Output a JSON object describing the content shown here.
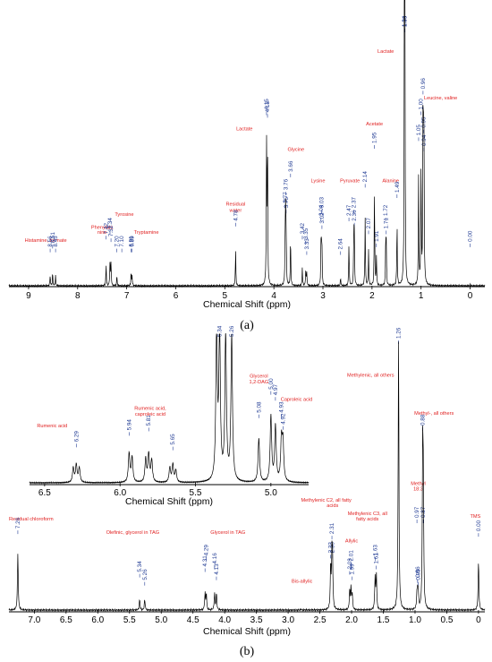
{
  "chart_data": [
    {
      "type": "line",
      "panel_label": "(a)",
      "xlabel": "Chemical Shift (ppm)",
      "xlim": [
        9.4,
        -0.3
      ],
      "x_ticks": [
        "9",
        "8",
        "7",
        "6",
        "5",
        "4",
        "3",
        "2",
        "1",
        "0"
      ],
      "peaks": [
        {
          "x": 8.56,
          "h": 0.04
        },
        {
          "x": 8.51,
          "h": 0.05
        },
        {
          "x": 8.45,
          "h": 0.04
        },
        {
          "x": 7.42,
          "h": 0.08
        },
        {
          "x": 7.34,
          "h": 0.1
        },
        {
          "x": 7.32,
          "h": 0.09
        },
        {
          "x": 7.2,
          "h": 0.04
        },
        {
          "x": 6.91,
          "h": 0.05
        },
        {
          "x": 6.89,
          "h": 0.04
        },
        {
          "x": 4.78,
          "h": 0.14
        },
        {
          "x": 4.15,
          "h": 0.58
        },
        {
          "x": 4.13,
          "h": 0.55
        },
        {
          "x": 3.77,
          "h": 0.18
        },
        {
          "x": 3.76,
          "h": 0.24
        },
        {
          "x": 3.75,
          "h": 0.17
        },
        {
          "x": 3.66,
          "h": 0.19
        },
        {
          "x": 3.42,
          "h": 0.07
        },
        {
          "x": 3.35,
          "h": 0.06
        },
        {
          "x": 3.33,
          "h": 0.05
        },
        {
          "x": 3.04,
          "h": 0.13
        },
        {
          "x": 3.03,
          "h": 0.14
        },
        {
          "x": 3.02,
          "h": 0.12
        },
        {
          "x": 2.64,
          "h": 0.03
        },
        {
          "x": 2.47,
          "h": 0.16
        },
        {
          "x": 2.37,
          "h": 0.2
        },
        {
          "x": 2.36,
          "h": 0.17
        },
        {
          "x": 2.14,
          "h": 0.27
        },
        {
          "x": 2.07,
          "h": 0.14
        },
        {
          "x": 1.95,
          "h": 0.37
        },
        {
          "x": 1.91,
          "h": 0.11
        },
        {
          "x": 1.72,
          "h": 0.16
        },
        {
          "x": 1.71,
          "h": 0.15
        },
        {
          "x": 1.49,
          "h": 0.25
        },
        {
          "x": 1.34,
          "h": 1.0
        },
        {
          "x": 1.33,
          "h": 0.97
        },
        {
          "x": 1.05,
          "h": 0.43
        },
        {
          "x": 1.0,
          "h": 0.5
        },
        {
          "x": 0.96,
          "h": 0.56
        },
        {
          "x": 0.95,
          "h": 0.47
        },
        {
          "x": 0.94,
          "h": 0.42
        },
        {
          "x": 0.0,
          "h": 0.005
        }
      ],
      "peak_labels": [
        {
          "text": "8.56",
          "x": 8.56,
          "y": 0.15
        },
        {
          "text": "8.51",
          "x": 8.51,
          "y": 0.165
        },
        {
          "text": "8.45",
          "x": 8.45,
          "y": 0.15
        },
        {
          "text": "7.42",
          "x": 7.42,
          "y": 0.2
        },
        {
          "text": "7.34",
          "x": 7.34,
          "y": 0.22
        },
        {
          "text": "7.32",
          "x": 7.32,
          "y": 0.19
        },
        {
          "text": "7.20",
          "x": 7.2,
          "y": 0.15
        },
        {
          "text": "7.10",
          "x": 7.1,
          "y": 0.15
        },
        {
          "text": "6.91",
          "x": 6.91,
          "y": 0.15
        },
        {
          "text": "6.89",
          "x": 6.89,
          "y": 0.15
        },
        {
          "text": "4.78",
          "x": 4.78,
          "y": 0.25
        },
        {
          "text": "4.15",
          "x": 4.15,
          "y": 0.68
        },
        {
          "text": "4.13",
          "x": 4.13,
          "y": 0.67
        },
        {
          "text": "3.77",
          "x": 3.77,
          "y": 0.32
        },
        {
          "text": "3.76",
          "x": 3.76,
          "y": 0.37
        },
        {
          "text": "3.75",
          "x": 3.75,
          "y": 0.3
        },
        {
          "text": "3.66",
          "x": 3.66,
          "y": 0.44
        },
        {
          "text": "3.42",
          "x": 3.42,
          "y": 0.2
        },
        {
          "text": "3.35",
          "x": 3.35,
          "y": 0.18
        },
        {
          "text": "3.33",
          "x": 3.33,
          "y": 0.14
        },
        {
          "text": "3.04",
          "x": 3.04,
          "y": 0.27
        },
        {
          "text": "3.03",
          "x": 3.03,
          "y": 0.3
        },
        {
          "text": "3.02",
          "x": 3.02,
          "y": 0.24
        },
        {
          "text": "2.64",
          "x": 2.64,
          "y": 0.14
        },
        {
          "text": "2.47",
          "x": 2.47,
          "y": 0.27
        },
        {
          "text": "2.37",
          "x": 2.37,
          "y": 0.3
        },
        {
          "text": "2.36",
          "x": 2.36,
          "y": 0.25
        },
        {
          "text": "2.14",
          "x": 2.14,
          "y": 0.4
        },
        {
          "text": "2.07",
          "x": 2.07,
          "y": 0.22
        },
        {
          "text": "1.95",
          "x": 1.95,
          "y": 0.55
        },
        {
          "text": "1.91",
          "x": 1.91,
          "y": 0.17
        },
        {
          "text": "1.72",
          "x": 1.72,
          "y": 0.27
        },
        {
          "text": "1.71",
          "x": 1.71,
          "y": 0.22
        },
        {
          "text": "1.49",
          "x": 1.49,
          "y": 0.36
        },
        {
          "text": "1.34",
          "x": 1.34,
          "y": 1.0
        },
        {
          "text": "1.33",
          "x": 1.33,
          "y": 1.0
        },
        {
          "text": "1.05",
          "x": 1.05,
          "y": 0.58
        },
        {
          "text": "1.00",
          "x": 1.0,
          "y": 0.68
        },
        {
          "text": "0.96",
          "x": 0.96,
          "y": 0.76
        },
        {
          "text": "0.95",
          "x": 0.95,
          "y": 0.61
        },
        {
          "text": "0.94",
          "x": 0.94,
          "y": 0.54
        },
        {
          "text": "0.00",
          "x": 0.0,
          "y": 0.17
        }
      ],
      "annotations": [
        {
          "text": "Histamine, formate",
          "x": 8.65,
          "y": 0.17
        },
        {
          "text": "Phenylala",
          "x": 7.5,
          "y": 0.22
        },
        {
          "text": "nine",
          "x": 7.5,
          "y": 0.2
        },
        {
          "text": "Tyrosine",
          "x": 7.05,
          "y": 0.27
        },
        {
          "text": "Tryptamine",
          "x": 6.6,
          "y": 0.2
        },
        {
          "text": "Residual",
          "x": 4.78,
          "y": 0.31
        },
        {
          "text": "water",
          "x": 4.78,
          "y": 0.285
        },
        {
          "text": "Lactate",
          "x": 4.6,
          "y": 0.6
        },
        {
          "text": "Glycine",
          "x": 3.55,
          "y": 0.52
        },
        {
          "text": "Lysine",
          "x": 3.1,
          "y": 0.4
        },
        {
          "text": "Pyruvate",
          "x": 2.45,
          "y": 0.4
        },
        {
          "text": "Acetate",
          "x": 1.95,
          "y": 0.62
        },
        {
          "text": "Alanine",
          "x": 1.62,
          "y": 0.4
        },
        {
          "text": "Lactate",
          "x": 1.72,
          "y": 0.9
        },
        {
          "text": "Leucine, valine",
          "x": 0.6,
          "y": 0.72
        }
      ]
    },
    {
      "type": "line",
      "panel_label": "(b)",
      "xlabel": "Chemical Shift (ppm)",
      "xlim": [
        7.4,
        -0.1
      ],
      "x_ticks": [
        "7.0",
        "6.5",
        "6.0",
        "5.5",
        "5.0",
        "4.5",
        "4.0",
        "3.5",
        "3.0",
        "2.5",
        "2.0",
        "1.5",
        "1.0",
        "0.5",
        "0"
      ],
      "peaks": [
        {
          "x": 7.26,
          "h": 0.21
        },
        {
          "x": 5.34,
          "h": 0.04
        },
        {
          "x": 5.26,
          "h": 0.04
        },
        {
          "x": 4.31,
          "h": 0.06
        },
        {
          "x": 4.29,
          "h": 0.06
        },
        {
          "x": 4.16,
          "h": 0.06
        },
        {
          "x": 4.13,
          "h": 0.06
        },
        {
          "x": 2.8,
          "h": 0.003
        },
        {
          "x": 2.33,
          "h": 0.16
        },
        {
          "x": 2.31,
          "h": 0.19
        },
        {
          "x": 2.3,
          "h": 0.16
        },
        {
          "x": 2.03,
          "h": 0.07
        },
        {
          "x": 2.01,
          "h": 0.08
        },
        {
          "x": 1.99,
          "h": 0.06
        },
        {
          "x": 1.63,
          "h": 0.12
        },
        {
          "x": 1.61,
          "h": 0.13
        },
        {
          "x": 1.26,
          "h": 1.0
        },
        {
          "x": 0.97,
          "h": 0.05
        },
        {
          "x": 0.96,
          "h": 0.05
        },
        {
          "x": 0.95,
          "h": 0.06
        },
        {
          "x": 0.88,
          "h": 0.55
        },
        {
          "x": 0.87,
          "h": 0.42
        },
        {
          "x": 0.0,
          "h": 0.18
        }
      ],
      "peak_labels": [
        {
          "text": "7.26",
          "x": 7.26,
          "y": 0.3
        },
        {
          "text": "5.34",
          "x": 5.34,
          "y": 0.14
        },
        {
          "text": "5.26",
          "x": 5.26,
          "y": 0.11
        },
        {
          "text": "4.31",
          "x": 4.31,
          "y": 0.16
        },
        {
          "text": "4.29",
          "x": 4.29,
          "y": 0.2
        },
        {
          "text": "4.16",
          "x": 4.16,
          "y": 0.17
        },
        {
          "text": "4.13",
          "x": 4.13,
          "y": 0.13
        },
        {
          "text": "2.33",
          "x": 2.33,
          "y": 0.21
        },
        {
          "text": "2.31",
          "x": 2.31,
          "y": 0.28
        },
        {
          "text": "2.30",
          "x": 2.3,
          "y": 0.21
        },
        {
          "text": "2.03",
          "x": 2.03,
          "y": 0.15
        },
        {
          "text": "2.01",
          "x": 2.01,
          "y": 0.18
        },
        {
          "text": "1.99",
          "x": 1.99,
          "y": 0.13
        },
        {
          "text": "1.63",
          "x": 1.63,
          "y": 0.2
        },
        {
          "text": "1.61",
          "x": 1.61,
          "y": 0.17
        },
        {
          "text": "1.26",
          "x": 1.26,
          "y": 1.0
        },
        {
          "text": "0.97",
          "x": 0.97,
          "y": 0.34
        },
        {
          "text": "0.96",
          "x": 0.96,
          "y": 0.12
        },
        {
          "text": "0.95",
          "x": 0.95,
          "y": 0.11
        },
        {
          "text": "0.88",
          "x": 0.88,
          "y": 0.68
        },
        {
          "text": "0.87",
          "x": 0.87,
          "y": 0.34
        },
        {
          "text": "0.00",
          "x": 0.0,
          "y": 0.29
        }
      ],
      "annotations": [
        {
          "text": "Residual chloroform",
          "x": 7.05,
          "y": 0.33
        },
        {
          "text": "Olefinic, glycerol in TAG",
          "x": 5.45,
          "y": 0.28
        },
        {
          "text": "Glycerol in TAG",
          "x": 3.95,
          "y": 0.28
        },
        {
          "text": "Bis-allylic",
          "x": 2.78,
          "y": 0.1
        },
        {
          "text": "Methylenic C2, all fatty",
          "x": 2.4,
          "y": 0.4
        },
        {
          "text": "acids",
          "x": 2.3,
          "y": 0.38
        },
        {
          "text": "Allylic",
          "x": 2.0,
          "y": 0.25
        },
        {
          "text": "Methylenic C3, all",
          "x": 1.75,
          "y": 0.35
        },
        {
          "text": "fatty acids",
          "x": 1.75,
          "y": 0.33
        },
        {
          "text": "Methylenic, all others",
          "x": 1.7,
          "y": 0.86
        },
        {
          "text": "Methyl-, all others",
          "x": 0.7,
          "y": 0.72
        },
        {
          "text": "Methyl",
          "x": 0.95,
          "y": 0.46
        },
        {
          "text": "18:3",
          "x": 0.95,
          "y": 0.44
        },
        {
          "text": "TMS",
          "x": 0.05,
          "y": 0.34
        }
      ]
    },
    {
      "type": "line",
      "panel_label": "inset",
      "xlabel": "Chemical Shift (ppm)",
      "xlim": [
        6.6,
        4.75
      ],
      "x_ticks": [
        "6.5",
        "6.0",
        "5.5",
        "5.0"
      ],
      "peaks": [
        {
          "x": 6.31,
          "h": 0.1
        },
        {
          "x": 6.29,
          "h": 0.12
        },
        {
          "x": 6.27,
          "h": 0.1
        },
        {
          "x": 5.94,
          "h": 0.2
        },
        {
          "x": 5.92,
          "h": 0.17
        },
        {
          "x": 5.83,
          "h": 0.16
        },
        {
          "x": 5.81,
          "h": 0.19
        },
        {
          "x": 5.79,
          "h": 0.15
        },
        {
          "x": 5.67,
          "h": 0.1
        },
        {
          "x": 5.65,
          "h": 0.12
        },
        {
          "x": 5.63,
          "h": 0.08
        },
        {
          "x": 5.36,
          "h": 1.0
        },
        {
          "x": 5.34,
          "h": 1.0
        },
        {
          "x": 5.3,
          "h": 1.0
        },
        {
          "x": 5.26,
          "h": 1.0
        },
        {
          "x": 5.08,
          "h": 0.3
        },
        {
          "x": 5.0,
          "h": 0.45
        },
        {
          "x": 4.97,
          "h": 0.38
        },
        {
          "x": 4.93,
          "h": 0.28
        },
        {
          "x": 4.92,
          "h": 0.26
        }
      ],
      "peak_labels": [
        {
          "text": "6.29",
          "x": 6.29,
          "y": 0.28
        },
        {
          "text": "5.94",
          "x": 5.94,
          "y": 0.36
        },
        {
          "text": "5.81",
          "x": 5.81,
          "y": 0.39
        },
        {
          "text": "5.65",
          "x": 5.65,
          "y": 0.26
        },
        {
          "text": "5.34",
          "x": 5.34,
          "y": 1.0
        },
        {
          "text": "5.26",
          "x": 5.26,
          "y": 1.0
        },
        {
          "text": "5.08",
          "x": 5.08,
          "y": 0.48
        },
        {
          "text": "5.00",
          "x": 5.0,
          "y": 0.64
        },
        {
          "text": "4.97",
          "x": 4.97,
          "y": 0.6
        },
        {
          "text": "4.93",
          "x": 4.93,
          "y": 0.48
        },
        {
          "text": "4.92",
          "x": 4.92,
          "y": 0.4
        }
      ],
      "annotations": [
        {
          "text": "Rumenic acid",
          "x": 6.45,
          "y": 0.38
        },
        {
          "text": "Rumenic acid,",
          "x": 5.8,
          "y": 0.5
        },
        {
          "text": "caproleic acid",
          "x": 5.8,
          "y": 0.46
        },
        {
          "text": "Glycerol",
          "x": 5.08,
          "y": 0.72
        },
        {
          "text": "1,2-DAG",
          "x": 5.08,
          "y": 0.68
        },
        {
          "text": "Caproleic acid",
          "x": 4.83,
          "y": 0.56
        }
      ]
    }
  ]
}
